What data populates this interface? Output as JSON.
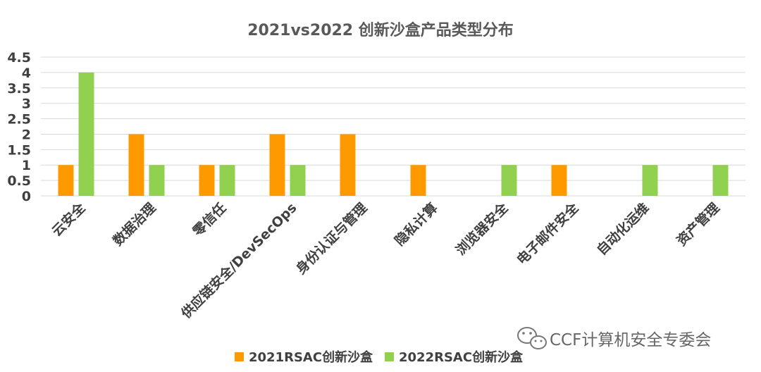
{
  "chart_data": {
    "type": "bar",
    "title": "2021vs2022 创新沙盒产品类型分布",
    "categories": [
      "云安全",
      "数据治理",
      "零信任",
      "供应链安全/DevSecOps",
      "身份认证与管理",
      "隐私计算",
      "浏览器安全",
      "电子邮件安全",
      "自动化运维",
      "资产管理"
    ],
    "series": [
      {
        "name": "2021RSAC创新沙盒",
        "color": "#FF9900",
        "values": [
          1,
          2,
          1,
          2,
          2,
          1,
          0,
          1,
          0,
          0
        ]
      },
      {
        "name": "2022RSAC创新沙盒",
        "color": "#92D050",
        "values": [
          4,
          1,
          1,
          1,
          0,
          0,
          1,
          0,
          1,
          1
        ]
      }
    ],
    "yticks": [
      "0",
      "0.5",
      "1",
      "1.5",
      "2",
      "2.5",
      "3",
      "3.5",
      "4",
      "4.5"
    ],
    "ylim": [
      0,
      4.5
    ],
    "grid": true,
    "legend_position": "bottom"
  },
  "watermark": {
    "text": "CCF计算机安全专委会",
    "icon": "wechat-icon"
  }
}
